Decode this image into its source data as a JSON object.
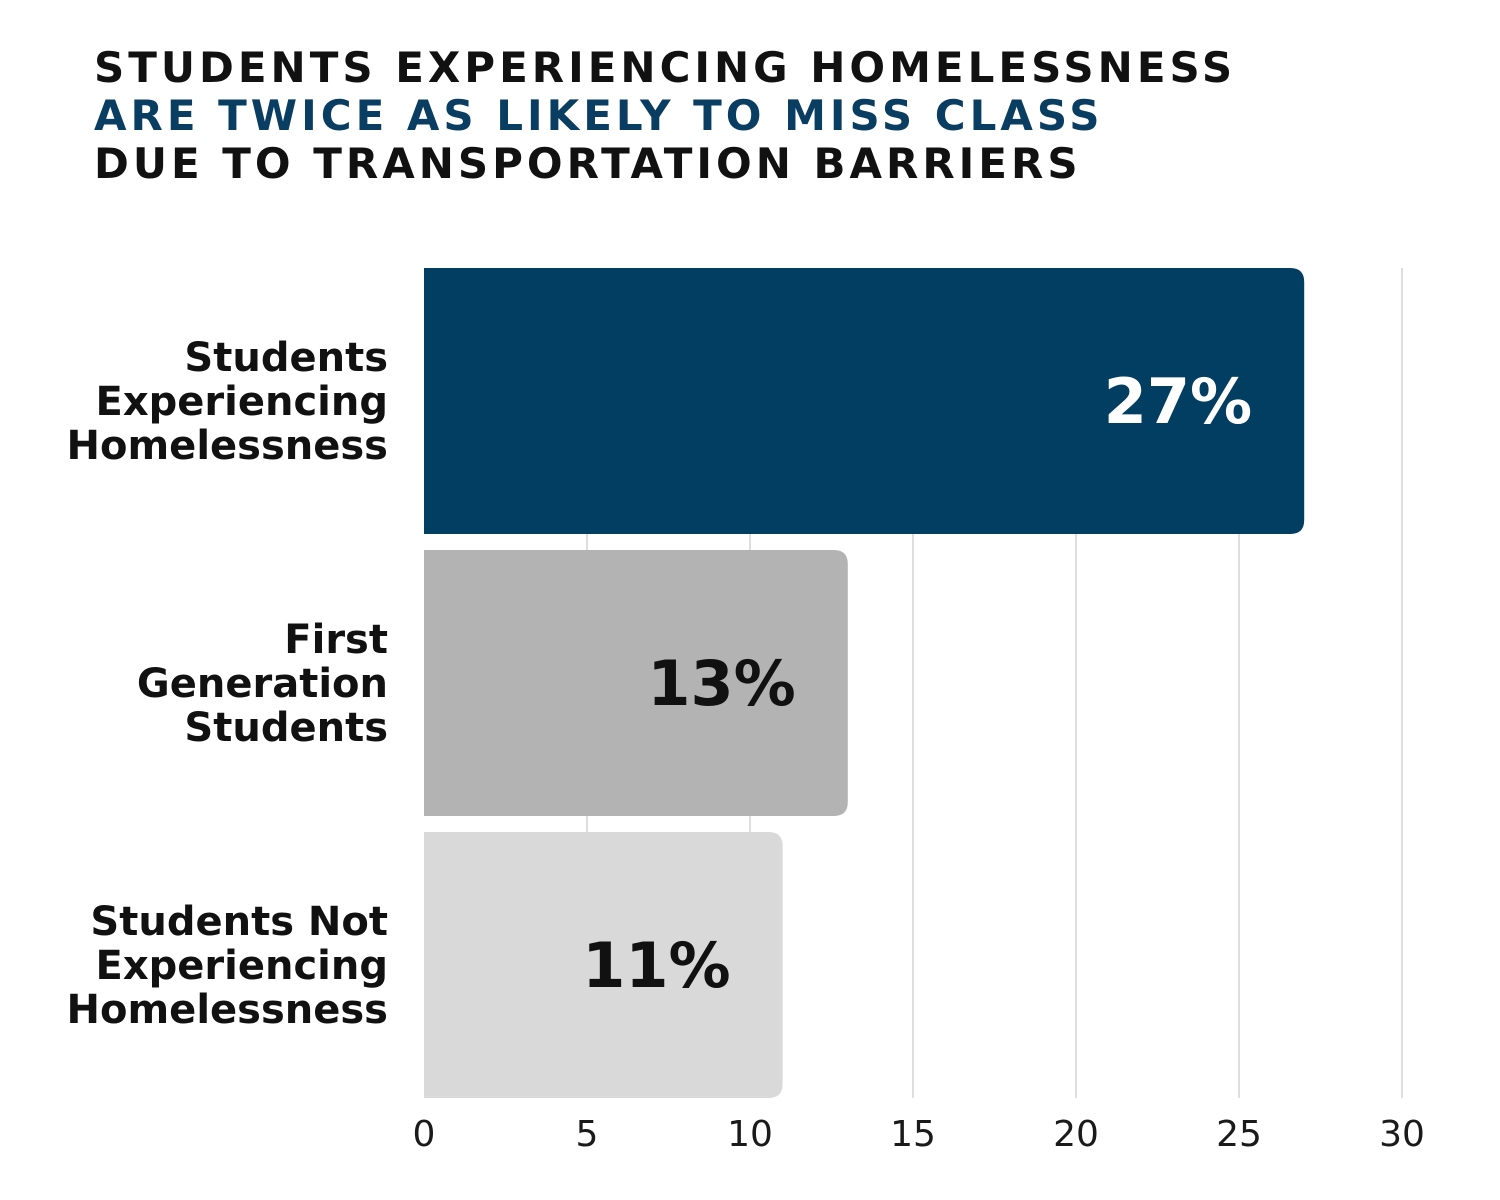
{
  "chart_data": {
    "type": "bar",
    "orientation": "horizontal",
    "title_lines": [
      {
        "text": "STUDENTS EXPERIENCING HOMELESSNESS",
        "color": "#111111"
      },
      {
        "text": "ARE TWICE AS LIKELY TO MISS CLASS",
        "color": "#0a3d62"
      },
      {
        "text": "DUE TO TRANSPORTATION BARRIERS",
        "color": "#111111"
      }
    ],
    "categories": [
      [
        "Students",
        "Experiencing",
        "Homelessness"
      ],
      [
        "First",
        "Generation",
        "Students"
      ],
      [
        "Students Not",
        "Experiencing",
        "Homelessness"
      ]
    ],
    "values": [
      27,
      13,
      11
    ],
    "value_labels": [
      "27%",
      "13%",
      "11%"
    ],
    "bar_colors": [
      "#023d62",
      "#b3b3b3",
      "#d9d9d9"
    ],
    "value_label_colors": [
      "#ffffff",
      "#111111",
      "#111111"
    ],
    "xlim": [
      0,
      30
    ],
    "xticks": [
      0,
      5,
      10,
      15,
      20,
      25,
      30
    ],
    "xtick_labels": [
      "0",
      "5",
      "10",
      "15",
      "20",
      "25",
      "30"
    ],
    "grid": true,
    "xlabel": "",
    "ylabel": ""
  }
}
